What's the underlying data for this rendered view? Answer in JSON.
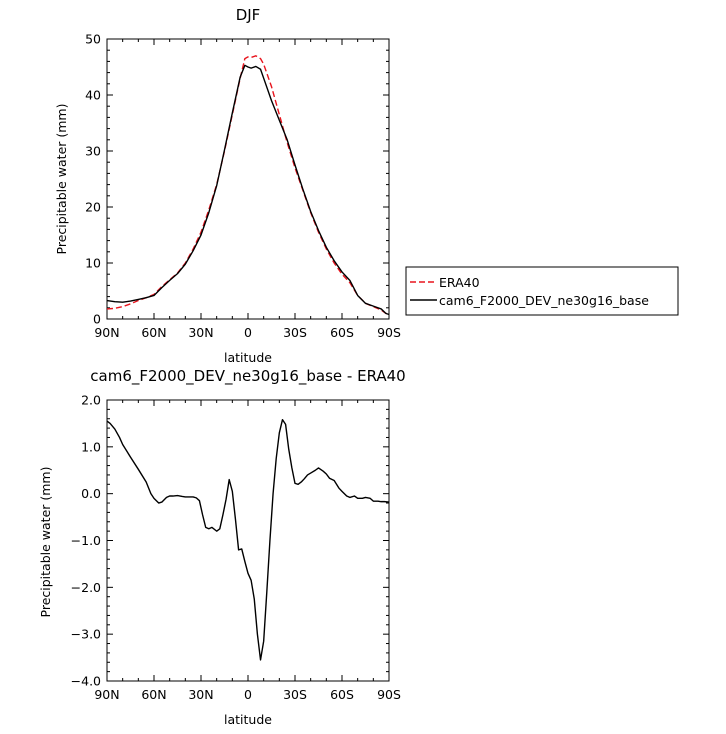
{
  "chart_data": [
    {
      "type": "line",
      "title": "DJF",
      "xlabel": "latitude",
      "ylabel": "Precipitable water (mm)",
      "x_unit_note": "latitude in degrees, north positive",
      "xlim": [
        90,
        -90
      ],
      "ylim": [
        0,
        50
      ],
      "xticks": [
        {
          "value": 90,
          "label": "90N"
        },
        {
          "value": 60,
          "label": "60N"
        },
        {
          "value": 30,
          "label": "30N"
        },
        {
          "value": 0,
          "label": "0"
        },
        {
          "value": -30,
          "label": "30S"
        },
        {
          "value": -60,
          "label": "60S"
        },
        {
          "value": -90,
          "label": "90S"
        }
      ],
      "yticks": [
        {
          "value": 0,
          "label": "0"
        },
        {
          "value": 10,
          "label": "10"
        },
        {
          "value": 20,
          "label": "20"
        },
        {
          "value": 30,
          "label": "30"
        },
        {
          "value": 40,
          "label": "40"
        },
        {
          "value": 50,
          "label": "50"
        }
      ],
      "grid": false,
      "legend_position": "outside-right",
      "series": [
        {
          "name": "ERA40",
          "color": "#e8141d",
          "dash": "dashed",
          "x": [
            90,
            85,
            80,
            75,
            70,
            65,
            60,
            55,
            50,
            45,
            40,
            35,
            30,
            25,
            20,
            15,
            10,
            5,
            2,
            0,
            -2,
            -5,
            -8,
            -10,
            -15,
            -20,
            -25,
            -30,
            -35,
            -40,
            -45,
            -50,
            -55,
            -60,
            -65,
            -70,
            -75,
            -80,
            -85,
            -88,
            -90
          ],
          "y": [
            1.8,
            1.9,
            2.2,
            2.7,
            3.3,
            3.8,
            4.4,
            5.8,
            7.0,
            8.2,
            10.0,
            12.5,
            15.5,
            19.5,
            24.0,
            30.0,
            36.5,
            43.0,
            46.5,
            46.8,
            46.7,
            47.0,
            46.5,
            45.5,
            41.5,
            36.5,
            31.5,
            27.0,
            23.0,
            19.0,
            15.5,
            12.5,
            10.0,
            8.0,
            6.5,
            4.2,
            2.8,
            2.2,
            1.6,
            1.0,
            0.9
          ]
        },
        {
          "name": "cam6_F2000_DEV_ne30g16_base",
          "color": "#000000",
          "dash": "solid",
          "x": [
            90,
            85,
            80,
            75,
            70,
            65,
            60,
            55,
            50,
            45,
            40,
            35,
            30,
            25,
            20,
            15,
            10,
            5,
            2,
            0,
            -2,
            -5,
            -8,
            -10,
            -15,
            -20,
            -25,
            -30,
            -35,
            -40,
            -45,
            -50,
            -55,
            -60,
            -65,
            -70,
            -75,
            -80,
            -85,
            -88,
            -90
          ],
          "y": [
            3.3,
            3.1,
            3.0,
            3.2,
            3.5,
            3.8,
            4.2,
            5.6,
            6.9,
            8.1,
            9.8,
            12.2,
            15.0,
            19.0,
            23.8,
            30.2,
            36.8,
            43.2,
            45.3,
            45.0,
            44.8,
            45.1,
            44.6,
            43.0,
            39.0,
            35.5,
            32.0,
            27.5,
            23.2,
            19.2,
            15.8,
            12.8,
            10.4,
            8.4,
            6.9,
            4.2,
            2.8,
            2.3,
            1.8,
            1.0,
            0.8
          ]
        }
      ]
    },
    {
      "type": "line",
      "title": "cam6_F2000_DEV_ne30g16_base - ERA40",
      "xlabel": "latitude",
      "ylabel": "Precipitable water (mm)",
      "x_unit_note": "latitude in degrees, north positive",
      "xlim": [
        90,
        -90
      ],
      "ylim": [
        -4.0,
        2.0
      ],
      "xticks": [
        {
          "value": 90,
          "label": "90N"
        },
        {
          "value": 60,
          "label": "60N"
        },
        {
          "value": 30,
          "label": "30N"
        },
        {
          "value": 0,
          "label": "0"
        },
        {
          "value": -30,
          "label": "30S"
        },
        {
          "value": -60,
          "label": "60S"
        },
        {
          "value": -90,
          "label": "90S"
        }
      ],
      "yticks": [
        {
          "value": 2.0,
          "label": "2.0"
        },
        {
          "value": 1.0,
          "label": "1.0"
        },
        {
          "value": 0.0,
          "label": "0.0"
        },
        {
          "value": -1.0,
          "label": "−1.0"
        },
        {
          "value": -2.0,
          "label": "−2.0"
        },
        {
          "value": -3.0,
          "label": "−3.0"
        },
        {
          "value": -4.0,
          "label": "−4.0"
        }
      ],
      "grid": false,
      "series": [
        {
          "color": "#000000",
          "dash": "solid",
          "x": [
            90,
            88,
            85,
            82,
            80,
            75,
            70,
            65,
            62,
            60,
            57,
            55,
            52,
            50,
            48,
            45,
            42,
            40,
            37,
            35,
            33,
            31,
            29,
            27,
            25,
            23,
            20,
            18,
            16,
            14,
            12,
            10,
            8,
            6,
            4,
            2,
            0,
            -2,
            -4,
            -6,
            -8,
            -10,
            -12,
            -14,
            -16,
            -18,
            -20,
            -22,
            -24,
            -26,
            -28,
            -30,
            -32,
            -34,
            -36,
            -38,
            -40,
            -43,
            -45,
            -48,
            -50,
            -52,
            -55,
            -58,
            -60,
            -63,
            -65,
            -68,
            -70,
            -73,
            -75,
            -78,
            -80,
            -83,
            -85,
            -87,
            -90
          ],
          "y": [
            1.55,
            1.5,
            1.38,
            1.2,
            1.05,
            0.78,
            0.52,
            0.25,
            0.0,
            -0.1,
            -0.2,
            -0.18,
            -0.08,
            -0.05,
            -0.05,
            -0.04,
            -0.06,
            -0.07,
            -0.07,
            -0.07,
            -0.09,
            -0.15,
            -0.45,
            -0.72,
            -0.75,
            -0.72,
            -0.8,
            -0.75,
            -0.45,
            -0.12,
            0.3,
            0.05,
            -0.55,
            -1.2,
            -1.18,
            -1.45,
            -1.7,
            -1.85,
            -2.25,
            -3.0,
            -3.55,
            -3.15,
            -2.1,
            -1.0,
            0.0,
            0.75,
            1.3,
            1.58,
            1.48,
            0.95,
            0.55,
            0.22,
            0.2,
            0.25,
            0.32,
            0.4,
            0.44,
            0.5,
            0.55,
            0.48,
            0.42,
            0.33,
            0.28,
            0.12,
            0.05,
            -0.05,
            -0.08,
            -0.05,
            -0.1,
            -0.1,
            -0.08,
            -0.1,
            -0.16,
            -0.16,
            -0.17,
            -0.17,
            -0.18
          ]
        }
      ]
    }
  ]
}
